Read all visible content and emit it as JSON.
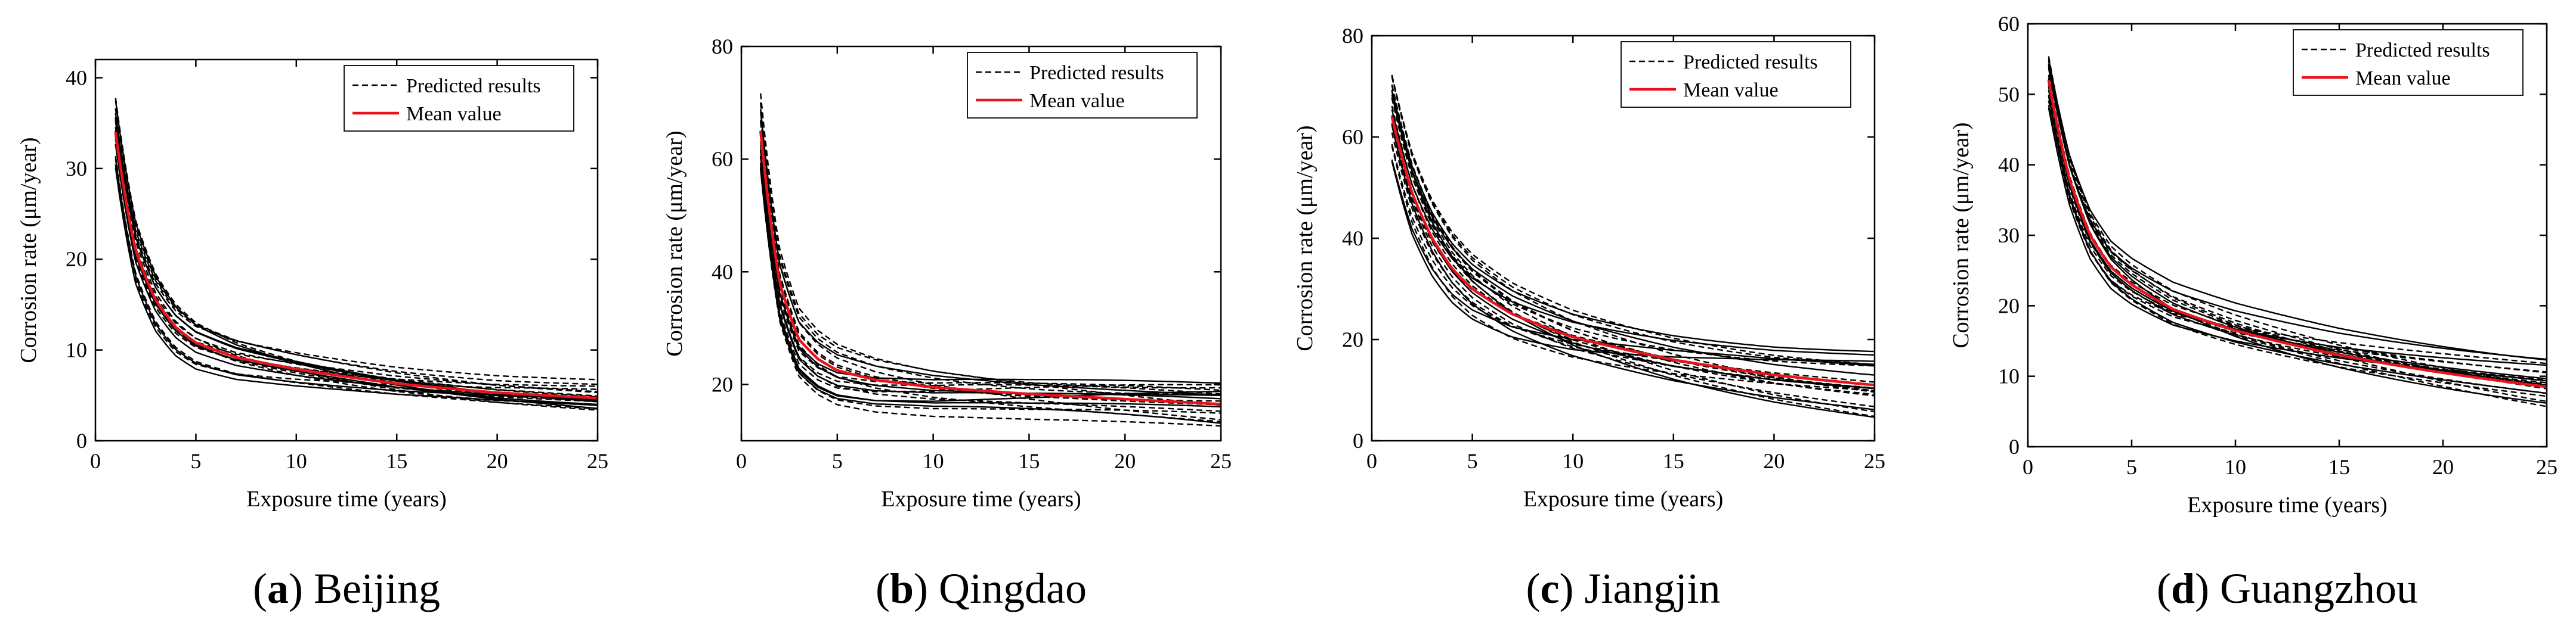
{
  "figure": {
    "legend": {
      "predicted": "Predicted results",
      "mean": "Mean value"
    },
    "xlabel": "Exposure time (years)",
    "ylabel": "Corrosion rate (μm/year)",
    "colors": {
      "mean": "#e8141b",
      "predicted": "#000000",
      "axes": "#000000"
    }
  },
  "chart_data": [
    {
      "type": "line",
      "panel_label": "a",
      "city": "Beijing",
      "xlabel": "Exposure time (years)",
      "ylabel": "Corrosion rate (μm/year)",
      "xlim": [
        0,
        25
      ],
      "ylim": [
        0,
        42
      ],
      "xticks": [
        0,
        5,
        10,
        15,
        20,
        25
      ],
      "yticks": [
        0,
        10,
        20,
        30,
        40
      ],
      "legend": [
        "Predicted results",
        "Mean value"
      ],
      "mean": {
        "x": [
          1,
          2,
          3,
          4,
          5,
          7,
          10,
          15,
          20,
          25
        ],
        "y": [
          34,
          21,
          15.5,
          12.5,
          10.8,
          9.2,
          7.9,
          6.3,
          5.3,
          4.7
        ]
      },
      "predicted_spread": {
        "start_offset": 4,
        "end_offset": 2.2,
        "curves": 20
      }
    },
    {
      "type": "line",
      "panel_label": "b",
      "city": "Qingdao",
      "xlabel": "Exposure time (years)",
      "ylabel": "Corrosion rate (μm/year)",
      "xlim": [
        0,
        25
      ],
      "ylim": [
        10,
        80
      ],
      "xticks": [
        0,
        5,
        10,
        15,
        20,
        25
      ],
      "yticks": [
        20,
        40,
        60,
        80
      ],
      "legend": [
        "Predicted results",
        "Mean value"
      ],
      "mean": {
        "x": [
          1,
          2,
          3,
          4,
          5,
          7,
          10,
          15,
          20,
          25
        ],
        "y": [
          65,
          38,
          28,
          24.5,
          22.5,
          20.8,
          19.5,
          18.3,
          17.4,
          16.5
        ]
      },
      "predicted_spread": {
        "start_offset": 7,
        "end_offset": 4,
        "curves": 20
      }
    },
    {
      "type": "line",
      "panel_label": "c",
      "city": "Jiangjin",
      "xlabel": "Exposure time (years)",
      "ylabel": "Corrosion rate (μm/year)",
      "xlim": [
        0,
        25
      ],
      "ylim": [
        0,
        80
      ],
      "xticks": [
        0,
        5,
        10,
        15,
        20,
        25
      ],
      "yticks": [
        0,
        20,
        40,
        60,
        80
      ],
      "legend": [
        "Predicted results",
        "Mean value"
      ],
      "mean": {
        "x": [
          1,
          2,
          3,
          4,
          5,
          7,
          10,
          15,
          20,
          25
        ],
        "y": [
          64,
          49,
          40,
          34,
          30,
          25,
          20.5,
          16,
          13,
          11
        ]
      },
      "predicted_spread": {
        "start_offset": 9,
        "end_offset": 7,
        "curves": 22
      }
    },
    {
      "type": "line",
      "panel_label": "d",
      "city": "Guangzhou",
      "xlabel": "Exposure time (years)",
      "ylabel": "Corrosion rate (μm/year)",
      "xlim": [
        0,
        25
      ],
      "ylim": [
        0,
        60
      ],
      "xticks": [
        0,
        5,
        10,
        15,
        20,
        25
      ],
      "yticks": [
        0,
        10,
        20,
        30,
        40,
        50,
        60
      ],
      "legend": [
        "Predicted results",
        "Mean value"
      ],
      "mean": {
        "x": [
          1,
          2,
          3,
          4,
          5,
          7,
          10,
          15,
          20,
          25
        ],
        "y": [
          52,
          38,
          30,
          25.5,
          23,
          19.5,
          16.5,
          13,
          10.5,
          8.5
        ]
      },
      "predicted_spread": {
        "start_offset": 4,
        "end_offset": 4.5,
        "curves": 22
      }
    }
  ]
}
